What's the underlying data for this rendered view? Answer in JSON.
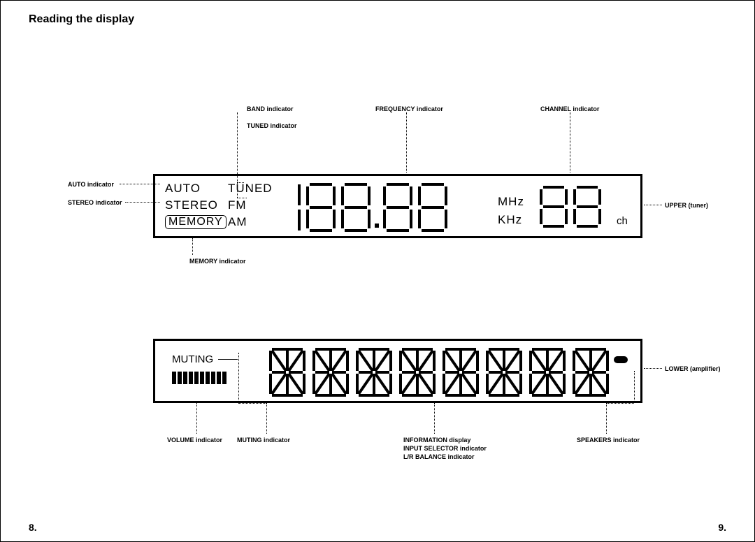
{
  "title": "Reading the display",
  "page_left": "8.",
  "page_right": "9.",
  "colors": {
    "fg": "#000000",
    "bg": "#ffffff"
  },
  "upper": {
    "auto": "AUTO",
    "stereo": "STEREO",
    "memory": "MEMORY",
    "tuned": "TUNED",
    "fm": "FM",
    "am": "AM",
    "mhz": "MHz",
    "khz": "KHz",
    "ch": "ch",
    "freq_digit_count": 5,
    "freq_digit_widths": [
      22,
      50,
      50,
      50,
      50
    ],
    "freq_decimal_after_index": 2,
    "ch_digit_count": 2
  },
  "lower": {
    "muting": "MUTING",
    "volume_segments": 10,
    "info_char_count": 8
  },
  "labels": {
    "auto_ind": "AUTO indicator",
    "stereo_ind": "STEREO indicator",
    "memory_ind": "MEMORY indicator",
    "band_ind": "BAND indicator",
    "tuned_ind": "TUNED indicator",
    "freq_ind": "FREQUENCY indicator",
    "channel_ind": "CHANNEL indicator",
    "upper_side": "UPPER (tuner)",
    "lower_side": "LOWER (amplifier)",
    "volume_ind": "VOLUME indicator",
    "muting_ind": "MUTING indicator",
    "info_disp": "INFORMATION display",
    "input_sel_ind": "INPUT SELECTOR indicator",
    "lr_bal_ind": "L/R BALANCE indicator",
    "speakers_ind": "SPEAKERS indicator"
  }
}
